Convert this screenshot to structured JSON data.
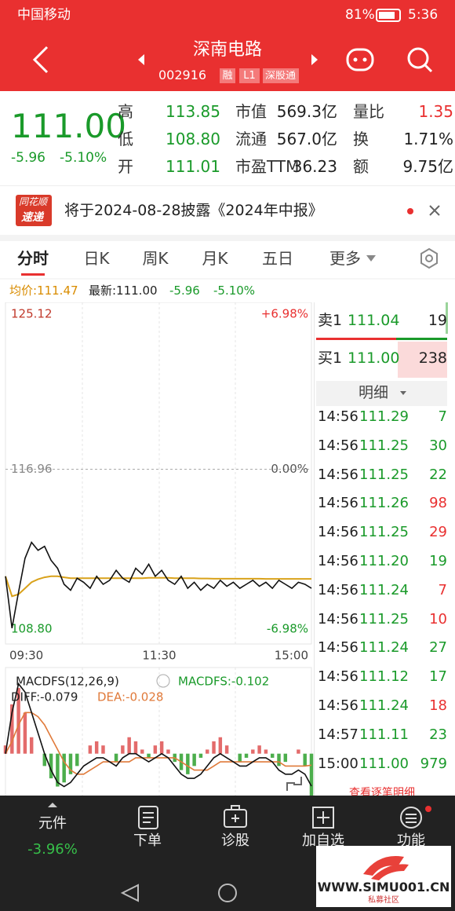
{
  "status": {
    "carrier": "中国移动",
    "battery": "81%",
    "time": "5:36"
  },
  "header": {
    "name": "深南电路",
    "code": "002916",
    "tags": [
      "融",
      "L1",
      "深股通"
    ]
  },
  "quote": {
    "price": "111.00",
    "change": "-5.96",
    "change_pct": "-5.10%",
    "stats": [
      {
        "label": "高",
        "value": "113.85",
        "color": "#1a9a2a"
      },
      {
        "label": "市值",
        "value": "569.3亿",
        "color": "#222222"
      },
      {
        "label": "量比",
        "value": "1.35",
        "color": "#e93030"
      },
      {
        "label": "低",
        "value": "108.80",
        "color": "#1a9a2a"
      },
      {
        "label": "流通",
        "value": "567.0亿",
        "color": "#222222"
      },
      {
        "label": "换",
        "value": "1.71%",
        "color": "#222222"
      },
      {
        "label": "开",
        "value": "111.01",
        "color": "#1a9a2a"
      },
      {
        "label": "市盈TTM",
        "value": "36.23",
        "color": "#222222"
      },
      {
        "label": "额",
        "value": "9.75亿",
        "color": "#222222"
      }
    ]
  },
  "notice": {
    "badge": [
      "同花顺",
      "速递"
    ],
    "text": "将于2024-08-28披露《2024年中报》"
  },
  "tabs": [
    "分时",
    "日K",
    "周K",
    "月K",
    "五日",
    "更多"
  ],
  "info": {
    "avg": "均价:111.47",
    "latest": "最新:111.00",
    "change": "-5.96",
    "change_pct": "-5.10%"
  },
  "intraday": {
    "yticks": [
      {
        "value": 125.12,
        "label": "125.12"
      },
      {
        "value": 116.96,
        "label": "116.96"
      },
      {
        "value": 108.8,
        "label": "108.80"
      }
    ],
    "pct_labels": [
      "+6.98%",
      "0.00%",
      "-6.98%"
    ],
    "xlabels": [
      "09:30",
      "11:30",
      "15:00"
    ],
    "price_color": "#111111",
    "avg_color": "#d9a21b",
    "price": [
      111.6,
      109.0,
      110.8,
      112.5,
      113.3,
      112.9,
      113.1,
      112.4,
      112.0,
      111.2,
      110.9,
      111.5,
      111.3,
      111.0,
      111.6,
      111.2,
      111.4,
      111.9,
      111.5,
      111.3,
      112.0,
      111.7,
      112.2,
      111.6,
      111.9,
      111.4,
      111.2,
      111.6,
      111.0,
      111.3,
      110.9,
      111.2,
      111.0,
      111.4,
      111.1,
      111.3,
      111.0,
      111.2,
      111.4,
      111.1,
      111.3,
      111.0,
      111.4,
      111.2,
      111.0,
      111.3,
      111.2,
      111.0
    ],
    "avg": [
      111.6,
      110.6,
      110.7,
      111.0,
      111.3,
      111.45,
      111.55,
      111.6,
      111.6,
      111.55,
      111.5,
      111.5,
      111.5,
      111.5,
      111.5,
      111.5,
      111.5,
      111.5,
      111.5,
      111.5,
      111.5,
      111.5,
      111.52,
      111.52,
      111.52,
      111.52,
      111.5,
      111.5,
      111.5,
      111.5,
      111.49,
      111.49,
      111.48,
      111.48,
      111.48,
      111.48,
      111.48,
      111.48,
      111.48,
      111.48,
      111.47,
      111.47,
      111.47,
      111.47,
      111.47,
      111.47,
      111.47,
      111.47
    ]
  },
  "macd": {
    "title": "MACDFS(12,26,9)",
    "value": "MACDFS:-0.102",
    "diff_label": "DIFF:-0.079",
    "dea_label": "DEA:-0.028",
    "ylim": [
      -0.1,
      0.2
    ],
    "up_color": "#e36b6b",
    "down_color": "#4cae4c",
    "diff_color": "#111111",
    "dea_color": "#e07a3a",
    "hist": [
      0.02,
      0.12,
      0.16,
      0.1,
      0.04,
      0.0,
      -0.03,
      -0.06,
      -0.08,
      -0.07,
      -0.05,
      -0.03,
      0.0,
      0.02,
      0.03,
      0.02,
      0.0,
      -0.02,
      0.02,
      0.04,
      0.03,
      0.01,
      -0.01,
      0.02,
      0.03,
      0.01,
      -0.02,
      -0.04,
      -0.05,
      -0.03,
      -0.01,
      0.01,
      0.03,
      0.04,
      0.02,
      0.0,
      -0.02,
      -0.01,
      0.01,
      0.02,
      0.01,
      -0.01,
      -0.03,
      -0.02,
      0.0,
      0.01,
      -0.03,
      -0.102
    ],
    "diff": [
      0.0,
      0.1,
      0.17,
      0.15,
      0.1,
      0.05,
      0.0,
      -0.04,
      -0.07,
      -0.08,
      -0.07,
      -0.05,
      -0.03,
      -0.02,
      -0.01,
      -0.01,
      -0.02,
      -0.03,
      -0.01,
      0.0,
      0.0,
      -0.01,
      -0.02,
      -0.01,
      0.0,
      -0.01,
      -0.03,
      -0.05,
      -0.06,
      -0.06,
      -0.05,
      -0.03,
      -0.01,
      0.0,
      -0.01,
      -0.02,
      -0.03,
      -0.03,
      -0.02,
      -0.01,
      -0.01,
      -0.02,
      -0.04,
      -0.05,
      -0.05,
      -0.04,
      -0.05,
      -0.079
    ],
    "dea": [
      0.0,
      0.03,
      0.07,
      0.1,
      0.1,
      0.09,
      0.07,
      0.04,
      0.01,
      -0.02,
      -0.04,
      -0.05,
      -0.05,
      -0.04,
      -0.03,
      -0.02,
      -0.02,
      -0.02,
      -0.02,
      -0.02,
      -0.01,
      -0.01,
      -0.01,
      -0.01,
      -0.01,
      -0.01,
      -0.01,
      -0.02,
      -0.03,
      -0.04,
      -0.04,
      -0.04,
      -0.03,
      -0.02,
      -0.02,
      -0.02,
      -0.02,
      -0.02,
      -0.02,
      -0.02,
      -0.02,
      -0.02,
      -0.02,
      -0.03,
      -0.03,
      -0.03,
      -0.03,
      -0.028
    ]
  },
  "orderbook": {
    "sell": {
      "label": "卖1",
      "price": "111.04",
      "volume": "19"
    },
    "buy": {
      "label": "买1",
      "price": "111.00",
      "volume": "238"
    },
    "detail_title": "明细"
  },
  "trades": [
    {
      "time": "14:56",
      "price": "111.29",
      "volume": "7",
      "volume_color": "#1a9a2a"
    },
    {
      "time": "14:56",
      "price": "111.25",
      "volume": "30",
      "volume_color": "#1a9a2a"
    },
    {
      "time": "14:56",
      "price": "111.25",
      "volume": "22",
      "volume_color": "#1a9a2a"
    },
    {
      "time": "14:56",
      "price": "111.26",
      "volume": "98",
      "volume_color": "#e93030"
    },
    {
      "time": "14:56",
      "price": "111.25",
      "volume": "29",
      "volume_color": "#e93030"
    },
    {
      "time": "14:56",
      "price": "111.20",
      "volume": "19",
      "volume_color": "#1a9a2a"
    },
    {
      "time": "14:56",
      "price": "111.24",
      "volume": "7",
      "volume_color": "#e93030"
    },
    {
      "time": "14:56",
      "price": "111.25",
      "volume": "10",
      "volume_color": "#e93030"
    },
    {
      "time": "14:56",
      "price": "111.24",
      "volume": "27",
      "volume_color": "#1a9a2a"
    },
    {
      "time": "14:56",
      "price": "111.12",
      "volume": "17",
      "volume_color": "#1a9a2a"
    },
    {
      "time": "14:56",
      "price": "111.24",
      "volume": "18",
      "volume_color": "#e93030"
    },
    {
      "time": "14:57",
      "price": "111.11",
      "volume": "23",
      "volume_color": "#1a9a2a"
    },
    {
      "time": "15:00",
      "price": "111.00",
      "volume": "979",
      "volume_color": "#1a9a2a"
    }
  ],
  "trades_more": "查看逐笔明细",
  "bottom_nav": {
    "component": "元件",
    "component_pct": "-3.96%",
    "items": [
      "下单",
      "诊股",
      "加自选",
      "功能"
    ]
  },
  "watermark": {
    "site": "WWW.SIMU001.CN",
    "tagline": "私募社区"
  }
}
